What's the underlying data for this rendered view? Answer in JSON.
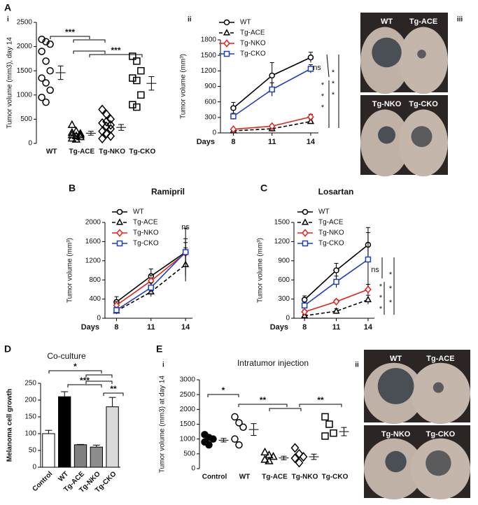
{
  "chart_data": [
    {
      "type": "dot",
      "panel": "A",
      "subpanel": "i",
      "ylabel": "Tumor volume (mm3), day 14",
      "categories": [
        "WT",
        "Tg-ACE",
        "Tg-NKO",
        "Tg-CKO"
      ],
      "groups": [
        {
          "marker": "circle",
          "filled": false,
          "values": [
            2150,
            2100,
            2050,
            1900,
            1700,
            1500,
            1350,
            1250,
            1100,
            950,
            850
          ],
          "mean": 1460,
          "sem": 140
        },
        {
          "marker": "triangle",
          "filled": false,
          "values": [
            380,
            250,
            200,
            170,
            150,
            130,
            100,
            80,
            170,
            220
          ],
          "mean": 210,
          "sem": 40
        },
        {
          "marker": "diamond",
          "filled": false,
          "values": [
            700,
            600,
            500,
            420,
            350,
            300,
            250,
            200,
            150,
            100,
            450,
            380
          ],
          "mean": 330,
          "sem": 60
        },
        {
          "marker": "square",
          "filled": false,
          "values": [
            1800,
            1700,
            1500,
            1350,
            1300,
            1000,
            800,
            750
          ],
          "mean": 1240,
          "sem": 140
        }
      ],
      "ylim": [
        0,
        2500
      ],
      "yticks": [
        0,
        500,
        1000,
        1500,
        2000,
        2500
      ],
      "significance": [
        {
          "label": "***"
        },
        {
          "label": "***"
        }
      ]
    },
    {
      "type": "line",
      "subpanel": "ii",
      "ylabel": "Tumor volume (mm³)",
      "xlabel": "Days",
      "x": [
        8,
        11,
        14
      ],
      "xlim": [
        7,
        14.6
      ],
      "xticks": [
        8,
        11,
        14
      ],
      "ylim": [
        0,
        1800
      ],
      "yticks": [
        0,
        300,
        600,
        900,
        1200,
        1500,
        1800
      ],
      "series": [
        {
          "name": "WT",
          "color": "#000000",
          "marker": "circle",
          "dashed": false,
          "values": [
            480,
            1110,
            1460
          ],
          "errors": [
            110,
            250,
            100
          ]
        },
        {
          "name": "Tg-ACE",
          "color": "#000000",
          "marker": "triangle",
          "dashed": true,
          "values": [
            40,
            80,
            220
          ],
          "errors": [
            20,
            30,
            50
          ]
        },
        {
          "name": "Tg-NKO",
          "color": "#e3211c",
          "marker": "diamond",
          "dashed": false,
          "values": [
            70,
            130,
            310
          ],
          "errors": [
            20,
            20,
            50
          ]
        },
        {
          "name": "Tg-CKO",
          "color": "#1f3fbf",
          "marker": "square",
          "dashed": false,
          "values": [
            320,
            840,
            1240
          ],
          "errors": [
            60,
            130,
            80
          ]
        }
      ],
      "annotations": [
        "ns",
        "*",
        "*",
        "*",
        "*",
        "*",
        "*"
      ]
    },
    {
      "type": "line",
      "panel": "B",
      "title": "Ramipril",
      "ylabel": "Tumor volume (mm³)",
      "xlabel": "Days",
      "x": [
        8,
        11,
        14
      ],
      "xlim": [
        7,
        14.6
      ],
      "xticks": [
        8,
        11,
        14
      ],
      "ylim": [
        0,
        2000
      ],
      "yticks": [
        0,
        400,
        800,
        1200,
        1600,
        2000
      ],
      "series": [
        {
          "name": "WT",
          "color": "#000000",
          "marker": "circle",
          "dashed": false,
          "values": [
            340,
            880,
            1380
          ],
          "errors": [
            110,
            150,
            500
          ]
        },
        {
          "name": "Tg-ACE",
          "color": "#000000",
          "marker": "triangle",
          "dashed": true,
          "values": [
            150,
            550,
            1120
          ],
          "errors": [
            60,
            100,
            350
          ]
        },
        {
          "name": "Tg-NKO",
          "color": "#e3211c",
          "marker": "diamond",
          "dashed": false,
          "values": [
            270,
            780,
            1360
          ],
          "errors": [
            80,
            120,
            300
          ]
        },
        {
          "name": "Tg-CKO",
          "color": "#1f3fbf",
          "marker": "square",
          "dashed": false,
          "values": [
            170,
            640,
            1380
          ],
          "errors": [
            60,
            100,
            200
          ]
        }
      ],
      "annotations": [
        "ns"
      ]
    },
    {
      "type": "line",
      "panel": "C",
      "title": "Losartan",
      "ylabel": "Tumor volume (mm³)",
      "xlabel": "Days",
      "x": [
        8,
        11,
        14
      ],
      "xlim": [
        7,
        14.6
      ],
      "xticks": [
        8,
        11,
        14
      ],
      "ylim": [
        0,
        1500
      ],
      "yticks": [
        0,
        300,
        600,
        900,
        1200,
        1500
      ],
      "series": [
        {
          "name": "WT",
          "color": "#000000",
          "marker": "circle",
          "dashed": false,
          "values": [
            290,
            750,
            1150
          ],
          "errors": [
            60,
            110,
            270
          ]
        },
        {
          "name": "Tg-ACE",
          "color": "#000000",
          "marker": "triangle",
          "dashed": true,
          "values": [
            40,
            110,
            290
          ],
          "errors": [
            20,
            40,
            70
          ]
        },
        {
          "name": "Tg-NKO",
          "color": "#e3211c",
          "marker": "diamond",
          "dashed": false,
          "values": [
            100,
            260,
            450
          ],
          "errors": [
            30,
            30,
            80
          ]
        },
        {
          "name": "Tg-CKO",
          "color": "#1f3fbf",
          "marker": "square",
          "dashed": false,
          "values": [
            200,
            570,
            920
          ],
          "errors": [
            40,
            90,
            420
          ]
        }
      ],
      "annotations": [
        "ns",
        "*",
        "*",
        "*",
        "*",
        "*",
        "*"
      ]
    },
    {
      "type": "bar",
      "panel": "D",
      "title": "Co-culture",
      "ylabel": "Melanoma cell growth",
      "categories": [
        "Control",
        "WT",
        "Tg-ACE",
        "Tg-NKO",
        "Tg-CKO"
      ],
      "values": [
        100,
        210,
        67,
        60,
        180
      ],
      "errors": [
        10,
        15,
        1,
        6,
        28
      ],
      "colors": [
        "#ffffff",
        "#000000",
        "#808080",
        "#8c8c8c",
        "#d9d9d9"
      ],
      "ylim": [
        0,
        250
      ],
      "yticks": [
        0,
        50,
        100,
        150,
        200,
        250
      ],
      "significance": [
        {
          "label": "*"
        },
        {
          "label": "***"
        },
        {
          "label": "**"
        }
      ]
    },
    {
      "type": "dot",
      "panel": "E",
      "subpanel": "i",
      "title": "Intratumor injection",
      "ylabel": "Tumor volume (mm3) at day 14",
      "categories": [
        "Control",
        "WT",
        "Tg-ACE",
        "Tg-NKO",
        "Tg-CKO"
      ],
      "groups": [
        {
          "marker": "circle",
          "filled": true,
          "values": [
            1150,
            1050,
            1000,
            900,
            800
          ],
          "mean": 960,
          "sem": 60
        },
        {
          "marker": "circle",
          "filled": false,
          "values": [
            1750,
            1550,
            1400,
            1000,
            800
          ],
          "mean": 1320,
          "sem": 200
        },
        {
          "marker": "triangle",
          "filled": false,
          "values": [
            550,
            450,
            400,
            300,
            250
          ],
          "mean": 360,
          "sem": 60
        },
        {
          "marker": "diamond",
          "filled": false,
          "values": [
            700,
            500,
            400,
            350,
            200
          ],
          "mean": 400,
          "sem": 90
        },
        {
          "marker": "square",
          "filled": false,
          "values": [
            1750,
            1500,
            1200,
            1100
          ],
          "mean": 1250,
          "sem": 140
        }
      ],
      "ylim": [
        0,
        3000
      ],
      "yticks": [
        0,
        500,
        1000,
        1500,
        2000,
        2500,
        3000
      ],
      "significance": [
        {
          "label": "*"
        },
        {
          "label": "**"
        },
        {
          "label": "**"
        }
      ]
    }
  ],
  "photos": [
    {
      "label": "iii",
      "labels": [
        "WT",
        "Tg-ACE",
        "Tg-NKO",
        "Tg-CKO"
      ]
    },
    {
      "label": "ii",
      "labels": [
        "WT",
        "Tg-ACE",
        "Tg-NKO",
        "Tg-CKO"
      ]
    }
  ]
}
